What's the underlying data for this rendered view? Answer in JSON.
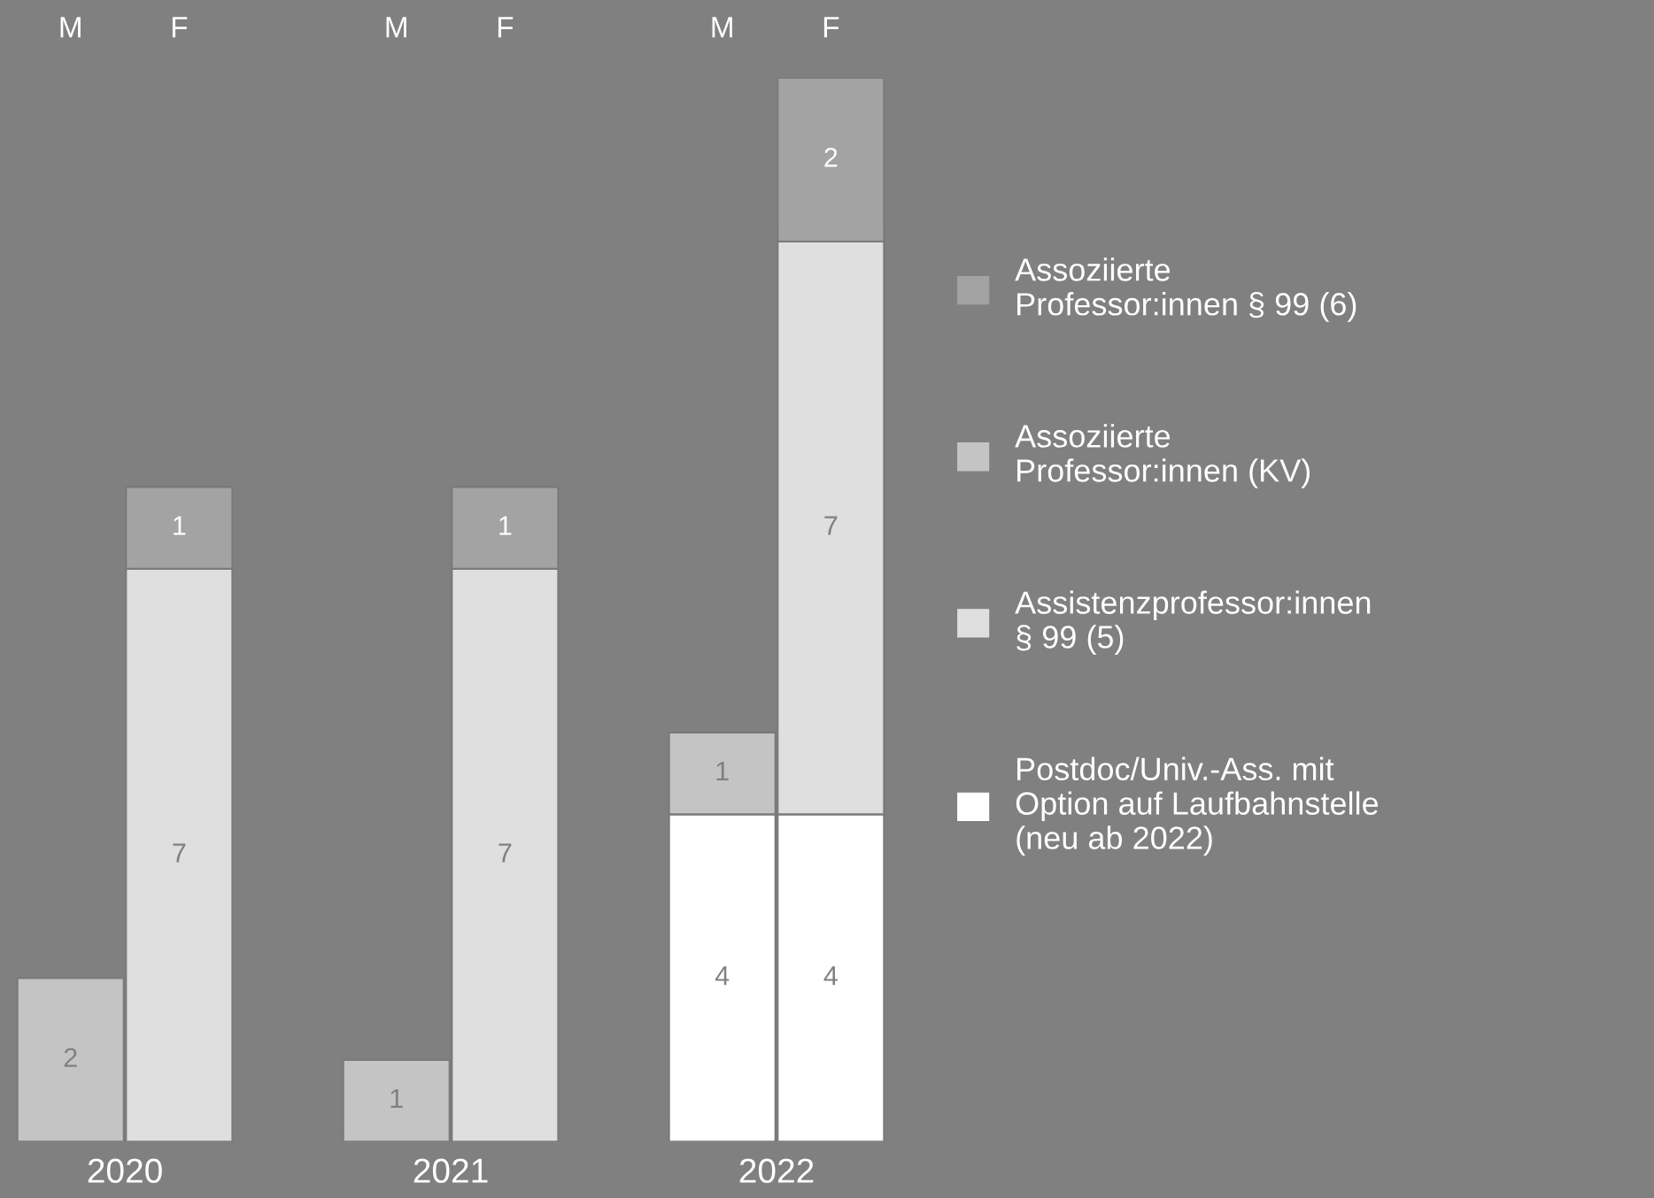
{
  "chart_data": {
    "type": "bar",
    "stacked": true,
    "data_labels": true,
    "legend": "right",
    "categories": [
      "M",
      "F",
      "M",
      "F",
      "M",
      "F"
    ],
    "annotations": [
      "2020",
      "2021",
      "2022"
    ],
    "series": [
      {
        "name": "Postdoc/Univ.-Ass. mit\nOption auf Laufbahnstelle\n(neu ab 2022)",
        "color": "#ffffff",
        "values": [
          null,
          null,
          null,
          null,
          4,
          4
        ]
      },
      {
        "name": "Assistenzprofessor:innen\n§ 99 (5)",
        "color": "#e0dfe0",
        "values": [
          null,
          7,
          null,
          7,
          null,
          7
        ]
      },
      {
        "name": "Assoziierte\nProfessor:innen (KV)",
        "color": "#c4c4c4",
        "values": [
          2,
          null,
          1,
          null,
          1,
          null
        ]
      },
      {
        "name": "Assoziierte\nProfessor:innen § 99 (6)",
        "color": "#a3a3a3",
        "values": [
          null,
          1,
          null,
          1,
          null,
          2
        ]
      }
    ]
  }
}
